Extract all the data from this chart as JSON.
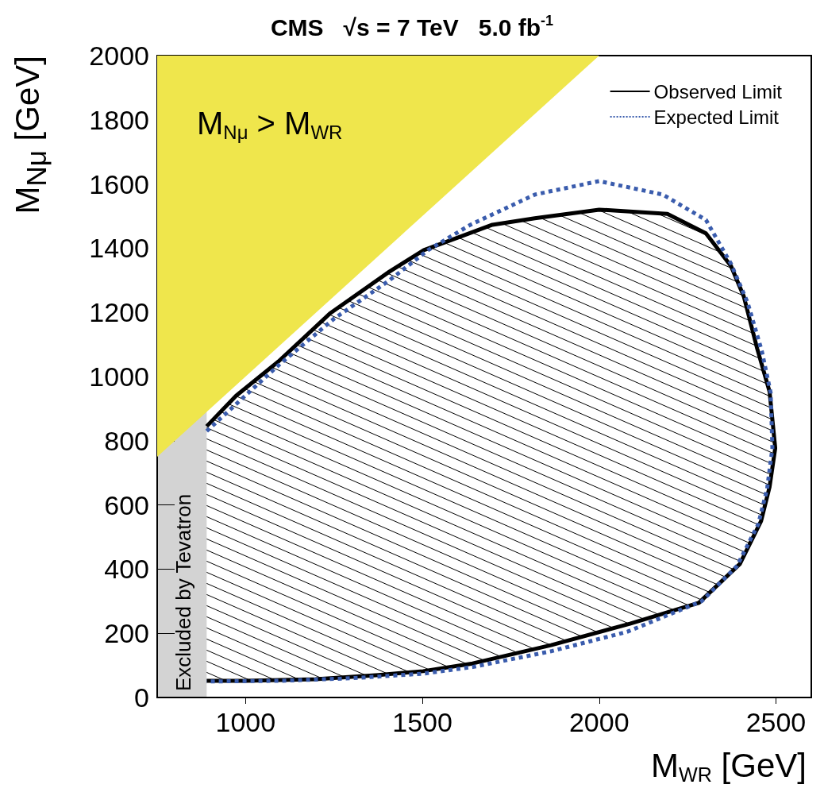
{
  "chart_data": {
    "type": "line",
    "title": "CMS   √s = 7 TeV   5.0 fb$^{-1}$",
    "xlabel": "M$_{W}$$_{R}$ [GeV]",
    "ylabel": "M$_{N}$$_{μ}$ [GeV]",
    "annotations": [
      "M$_{N}$$_{μ}$ > M$_{W}$$_{R}$"
    ],
    "xlim": [
      750,
      2600
    ],
    "xticks": [
      1000,
      1500,
      2000,
      2500
    ],
    "ylim": [
      0,
      2000
    ],
    "yticks": [
      0,
      200,
      400,
      600,
      800,
      1000,
      1200,
      1400,
      1600,
      1800,
      2000
    ],
    "grid": false,
    "legend": "top right",
    "bands": [
      {
        "axis": "x",
        "from": 750,
        "to": 890,
        "label": "Excluded by Tevatron",
        "color": "#d3d3d3"
      }
    ],
    "series": [
      {
        "type": "area",
        "color": "#efe64c",
        "x": [
          750,
          2000,
          750
        ],
        "values": [
          750,
          2000,
          2000
        ]
      },
      {
        "type": "area",
        "name": "Observed Limit",
        "color": "#000000",
        "line_style": "solid",
        "x": [
          890,
          973,
          1093,
          1238,
          1407,
          1504,
          1600,
          1698,
          1818,
          2000,
          2193,
          2302,
          2373,
          2409,
          2447,
          2482,
          2498,
          2482,
          2458,
          2398,
          2282,
          2087,
          1864,
          1642,
          1502,
          1376,
          1198,
          1000,
          890
        ],
        "values": [
          845,
          940,
          1047,
          1196,
          1327,
          1394,
          1433,
          1473,
          1493,
          1520,
          1507,
          1446,
          1344,
          1250,
          1087,
          953,
          777,
          656,
          550,
          416,
          295,
          230,
          163,
          106,
          82,
          70,
          57,
          52,
          52
        ]
      },
      {
        "name": "Expected Limit",
        "color": "#3a5cad",
        "line_style": "dotted",
        "x": [
          890,
          1093,
          1250,
          1407,
          1516,
          1636,
          1818,
          2000,
          2180,
          2302,
          2373,
          2420,
          2460,
          2485,
          2490,
          2475,
          2450,
          2390,
          2290,
          2080,
          1864,
          1642,
          1500,
          1300,
          1100,
          890
        ],
        "values": [
          830,
          1035,
          1180,
          1300,
          1394,
          1473,
          1567,
          1609,
          1567,
          1488,
          1351,
          1230,
          1080,
          950,
          777,
          650,
          540,
          410,
          300,
          205,
          144,
          95,
          74,
          60,
          52,
          50
        ]
      }
    ]
  }
}
